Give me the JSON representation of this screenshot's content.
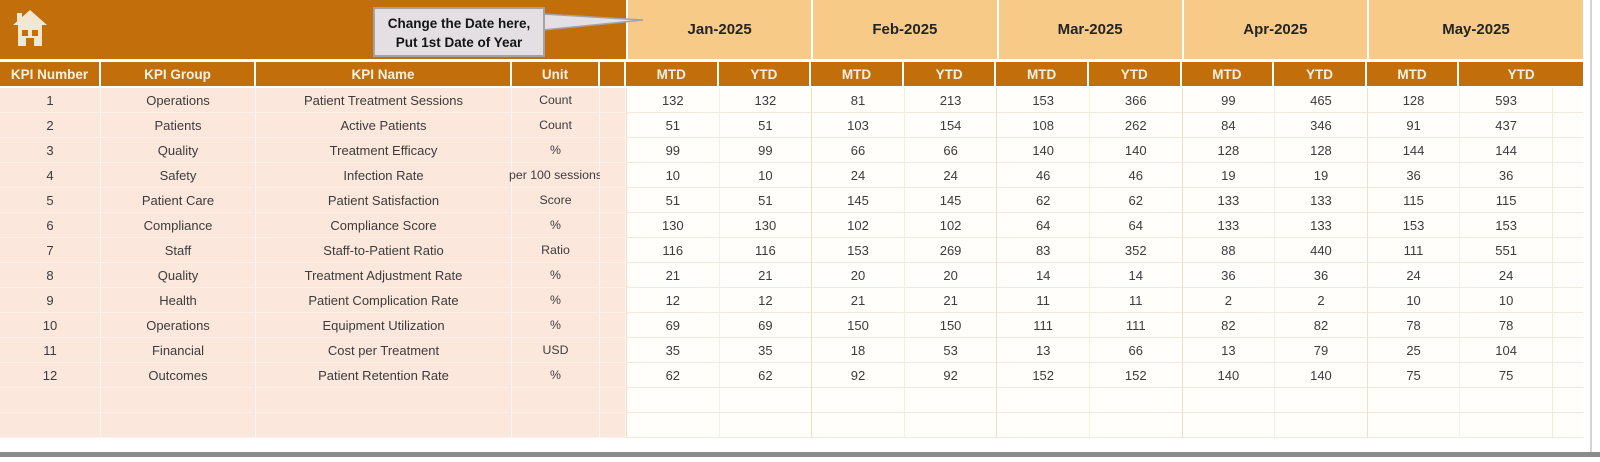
{
  "callout": {
    "line1": "Change the Date here,",
    "line2": "Put 1st Date of Year"
  },
  "table": {
    "left_headers": [
      "KPI Number",
      "KPI Group",
      "KPI Name",
      "Unit"
    ],
    "months": [
      "Jan-2025",
      "Feb-2025",
      "Mar-2025",
      "Apr-2025",
      "May-2025"
    ],
    "sub_headers": [
      "MTD",
      "YTD"
    ],
    "rows": [
      {
        "number": "1",
        "group": "Operations",
        "name": "Patient Treatment Sessions",
        "unit": "Count",
        "values": [
          132,
          132,
          81,
          213,
          153,
          366,
          99,
          465,
          128,
          593
        ]
      },
      {
        "number": "2",
        "group": "Patients",
        "name": "Active Patients",
        "unit": "Count",
        "values": [
          51,
          51,
          103,
          154,
          108,
          262,
          84,
          346,
          91,
          437
        ]
      },
      {
        "number": "3",
        "group": "Quality",
        "name": "Treatment Efficacy",
        "unit": "%",
        "values": [
          99,
          99,
          66,
          66,
          140,
          140,
          128,
          128,
          144,
          144
        ]
      },
      {
        "number": "4",
        "group": "Safety",
        "name": "Infection Rate",
        "unit": "per 100 sessions",
        "values": [
          10,
          10,
          24,
          24,
          46,
          46,
          19,
          19,
          36,
          36
        ]
      },
      {
        "number": "5",
        "group": "Patient Care",
        "name": "Patient Satisfaction",
        "unit": "Score",
        "values": [
          51,
          51,
          145,
          145,
          62,
          62,
          133,
          133,
          115,
          115
        ]
      },
      {
        "number": "6",
        "group": "Compliance",
        "name": "Compliance Score",
        "unit": "%",
        "values": [
          130,
          130,
          102,
          102,
          64,
          64,
          133,
          133,
          153,
          153
        ]
      },
      {
        "number": "7",
        "group": "Staff",
        "name": "Staff-to-Patient Ratio",
        "unit": "Ratio",
        "values": [
          116,
          116,
          153,
          269,
          83,
          352,
          88,
          440,
          111,
          551
        ]
      },
      {
        "number": "8",
        "group": "Quality",
        "name": "Treatment Adjustment Rate",
        "unit": "%",
        "values": [
          21,
          21,
          20,
          20,
          14,
          14,
          36,
          36,
          24,
          24
        ]
      },
      {
        "number": "9",
        "group": "Health",
        "name": "Patient Complication Rate",
        "unit": "%",
        "values": [
          12,
          12,
          21,
          21,
          11,
          11,
          2,
          2,
          10,
          10
        ]
      },
      {
        "number": "10",
        "group": "Operations",
        "name": "Equipment Utilization",
        "unit": "%",
        "values": [
          69,
          69,
          150,
          150,
          111,
          111,
          82,
          82,
          78,
          78
        ]
      },
      {
        "number": "11",
        "group": "Financial",
        "name": "Cost per Treatment",
        "unit": "USD",
        "values": [
          35,
          35,
          18,
          53,
          13,
          66,
          13,
          79,
          25,
          104
        ]
      },
      {
        "number": "12",
        "group": "Outcomes",
        "name": "Patient Retention Rate",
        "unit": "%",
        "values": [
          62,
          62,
          92,
          92,
          152,
          152,
          140,
          140,
          75,
          75
        ]
      }
    ],
    "empty_row_count": 2
  },
  "icons": {
    "home": "home-icon"
  },
  "colors": {
    "header_dark_orange": "#C26F0B",
    "month_band_orange": "#F8CA87",
    "left_column_pink": "#FBE7DB",
    "value_cell_white": "#FFFEFB",
    "header_text": "#FAF1E3",
    "body_text": "#3C3C3C",
    "callout_bg": "#E3DFE2",
    "callout_border": "#A5A1A5",
    "window_edge_gray": "#8A8A8A"
  }
}
